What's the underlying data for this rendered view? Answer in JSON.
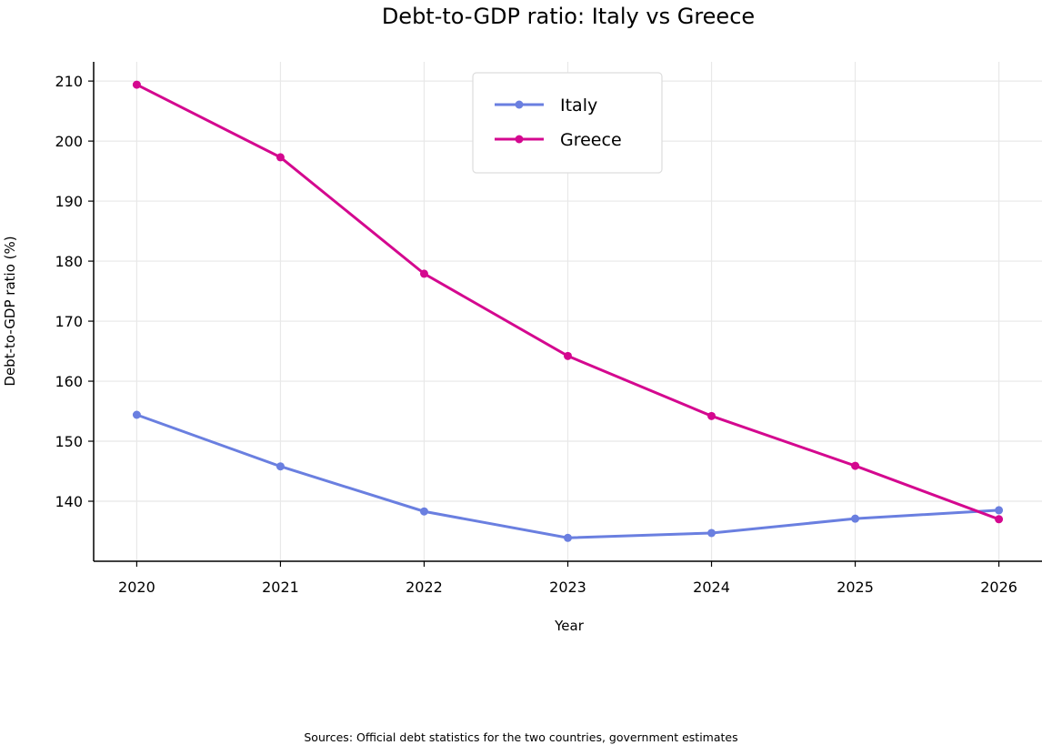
{
  "chart_data": {
    "type": "line",
    "title": "Debt-to-GDP ratio: Italy vs Greece",
    "xlabel": "Year",
    "ylabel": "Debt-to-GDP ratio (%)",
    "x": [
      2020,
      2021,
      2022,
      2023,
      2024,
      2025,
      2026
    ],
    "series": [
      {
        "name": "Italy",
        "color": "#6a7fe0",
        "values": [
          154.4,
          145.8,
          138.3,
          133.9,
          134.7,
          137.1,
          138.5
        ]
      },
      {
        "name": "Greece",
        "color": "#d4088f",
        "values": [
          209.4,
          197.3,
          177.9,
          164.2,
          154.2,
          145.9,
          137.0
        ]
      }
    ],
    "xlim": [
      2019.7,
      2026.3
    ],
    "ylim": [
      130,
      213.2
    ],
    "yticks": [
      140,
      150,
      160,
      170,
      180,
      190,
      200,
      210
    ],
    "xticks": [
      2020,
      2021,
      2022,
      2023,
      2024,
      2025,
      2026
    ],
    "grid": true,
    "legend": "top-center"
  },
  "footnote": "Sources: Official debt statistics for the two countries, government estimates"
}
